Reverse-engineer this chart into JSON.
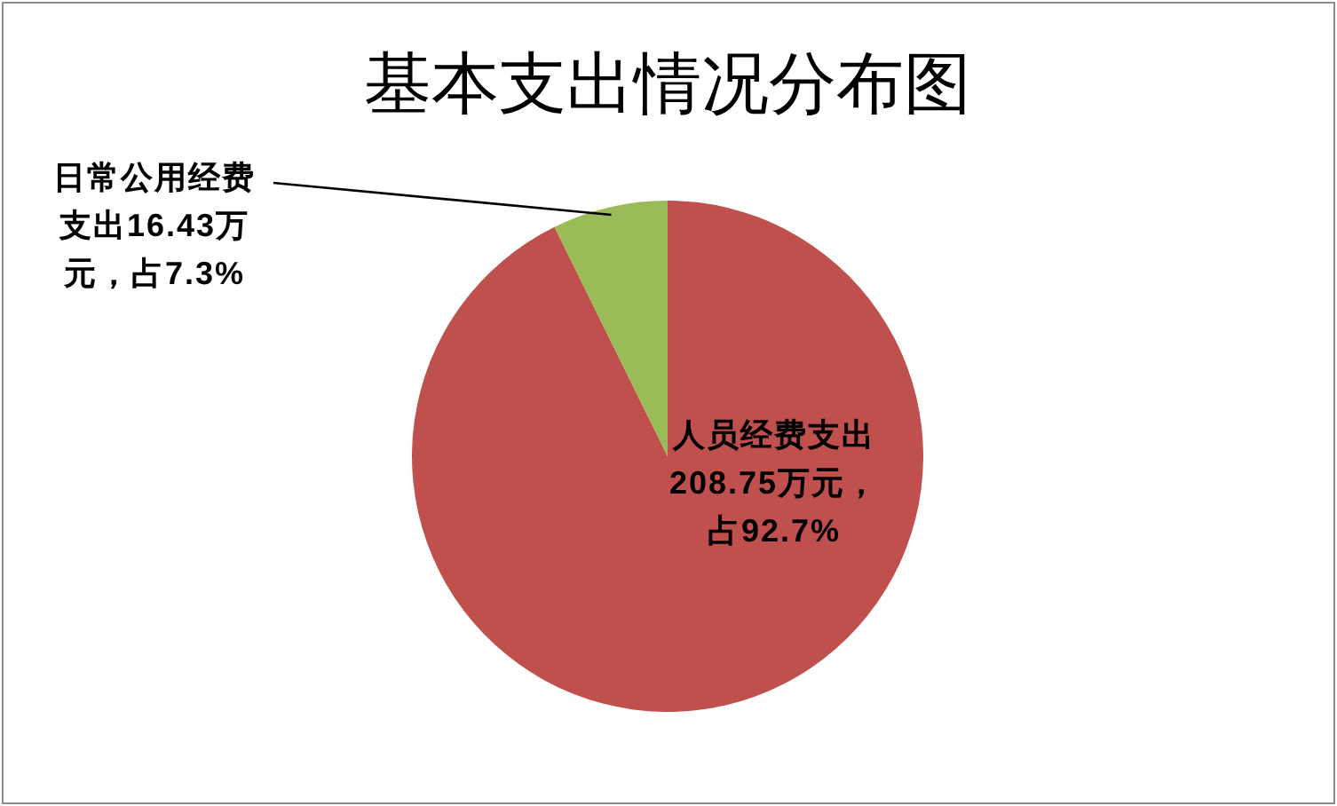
{
  "chart_data": {
    "type": "pie",
    "title": "基本支出情况分布图",
    "categories": [
      "人员经费支出",
      "日常公用经费支出"
    ],
    "values": [
      208.75,
      16.43
    ],
    "colors": [
      "#c0504d",
      "#9bbb59"
    ],
    "value_labels": [
      "208.75万元，占92.7%",
      "16.43万元，占7.3%"
    ]
  }
}
